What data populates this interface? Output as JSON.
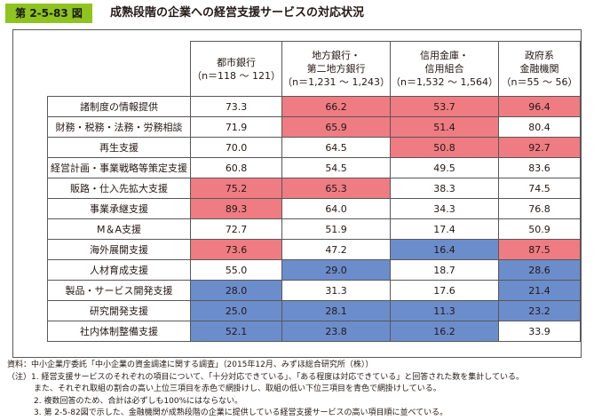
{
  "header": {
    "figure_number": "第 2-5-83 図",
    "title": "成熟段階の企業への経営支援サービスの対応状況"
  },
  "table": {
    "columns": [
      {
        "line1": "都市銀行",
        "line2": "（n＝118 ～ 121）",
        "line3": ""
      },
      {
        "line1": "地方銀行・",
        "line2": "第二地方銀行",
        "line3": "（n＝1,231 ～ 1,243）"
      },
      {
        "line1": "信用金庫・",
        "line2": "信用組合",
        "line3": "（n＝1,532 ～ 1,564）"
      },
      {
        "line1": "政府系",
        "line2": "金融機関",
        "line3": "（n＝55 ～ 56）"
      }
    ],
    "rows": [
      {
        "label": "諸制度の情報提供",
        "values": [
          "73.3",
          "66.2",
          "53.7",
          "96.4"
        ],
        "highlight": [
          "",
          "red",
          "red",
          "red"
        ]
      },
      {
        "label": "財務・税務・法務・労務相談",
        "values": [
          "71.9",
          "65.9",
          "51.4",
          "80.4"
        ],
        "highlight": [
          "",
          "red",
          "red",
          ""
        ]
      },
      {
        "label": "再生支援",
        "values": [
          "70.0",
          "64.5",
          "50.8",
          "92.7"
        ],
        "highlight": [
          "",
          "",
          "red",
          "red"
        ]
      },
      {
        "label": "経営計画・事業戦略等策定支援",
        "values": [
          "60.8",
          "54.5",
          "49.5",
          "83.6"
        ],
        "highlight": [
          "",
          "",
          "",
          ""
        ]
      },
      {
        "label": "販路・仕入先拡大支援",
        "values": [
          "75.2",
          "65.3",
          "38.3",
          "74.5"
        ],
        "highlight": [
          "red",
          "red",
          "",
          ""
        ]
      },
      {
        "label": "事業承継支援",
        "values": [
          "89.3",
          "64.0",
          "34.3",
          "76.8"
        ],
        "highlight": [
          "red",
          "",
          "",
          ""
        ]
      },
      {
        "label": "M＆A支援",
        "values": [
          "72.7",
          "51.9",
          "17.4",
          "50.9"
        ],
        "highlight": [
          "",
          "",
          "",
          ""
        ]
      },
      {
        "label": "海外展開支援",
        "values": [
          "73.6",
          "47.2",
          "16.4",
          "87.5"
        ],
        "highlight": [
          "red",
          "",
          "blue",
          "red"
        ]
      },
      {
        "label": "人材育成支援",
        "values": [
          "55.0",
          "29.0",
          "18.7",
          "28.6"
        ],
        "highlight": [
          "",
          "blue",
          "",
          "blue"
        ]
      },
      {
        "label": "製品・サービス開発支援",
        "values": [
          "28.0",
          "31.3",
          "17.6",
          "21.4"
        ],
        "highlight": [
          "blue",
          "",
          "",
          "blue"
        ]
      },
      {
        "label": "研究開発支援",
        "values": [
          "25.0",
          "28.1",
          "11.3",
          "23.2"
        ],
        "highlight": [
          "blue",
          "blue",
          "blue",
          "blue"
        ]
      },
      {
        "label": "社内体制整備支援",
        "values": [
          "52.1",
          "23.8",
          "16.2",
          "33.9"
        ],
        "highlight": [
          "blue",
          "blue",
          "blue",
          ""
        ]
      }
    ]
  },
  "notes": {
    "source": "資料：中小企業庁委託「中小企業の資金調達に関する調査」（2015年12月、みずほ総合研究所（株））",
    "note1a": "（注）1. 経営支援サービスのそれぞれの項目について、「十分対応できている」、「ある程度は対応できている」と回答された数を集計している。",
    "note1b": "また、それぞれ取組の割合の高い上位三項目を赤色で網掛けし、取組の低い下位三項目を青色で網掛けしている。",
    "note2": "2. 複数回答のため、合計は必ずしも100%にはならない。",
    "note3": "3. 第 2-5-82図で示した、金融機関が成熟段階の企業に提供している経営支援サービスの高い項目順に並べている。"
  },
  "colors": {
    "label_bg": "#8fc31f",
    "top3": "#ee7c82",
    "bottom3": "#6b8dcb",
    "border": "#595757"
  }
}
